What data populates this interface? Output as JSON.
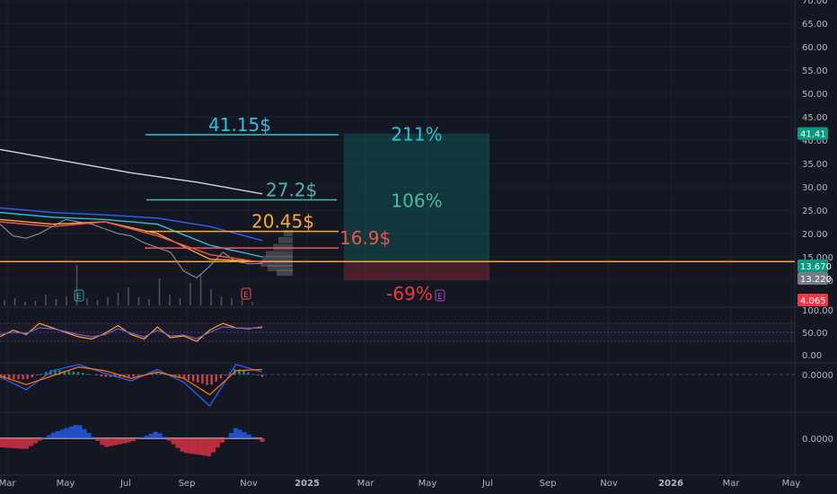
{
  "chart_data": {
    "type": "line",
    "symbol_context": "stock price chart with indicators",
    "price_axis": {
      "ticks": [
        "70.00",
        "65.00",
        "60.00",
        "55.00",
        "50.00",
        "45.00",
        "40.00",
        "35.00",
        "30.00",
        "25.00",
        "20.00",
        "15.000",
        "10.000"
      ],
      "tick_values": [
        70,
        65,
        60,
        55,
        50,
        45,
        40,
        35,
        30,
        25,
        20,
        15,
        10
      ],
      "ylim": [
        10,
        70
      ]
    },
    "time_axis": {
      "ticks": [
        "Mar",
        "May",
        "Jul",
        "Sep",
        "Nov",
        "2025",
        "Mar",
        "May",
        "Jul",
        "Sep",
        "Nov",
        "2026",
        "Mar",
        "May"
      ]
    },
    "price_tags": [
      {
        "label": "41.41",
        "value": 41.41,
        "color": "#089981"
      },
      {
        "label": "13.670",
        "value": 13.67,
        "color": "#089981"
      },
      {
        "label": "13.220",
        "value": 13.22,
        "color": "#787b86"
      },
      {
        "label": "4.065",
        "value": 10.0,
        "color": "#f23645"
      }
    ],
    "targets": [
      {
        "label": "41.15$",
        "value": 41.15,
        "color": "#26c6da"
      },
      {
        "label": "27.2$",
        "value": 27.2,
        "color": "#4db6ac"
      },
      {
        "label": "20.45$",
        "value": 20.45,
        "color": "#ffa726"
      },
      {
        "label": "16.9$",
        "value": 16.9,
        "color": "#ef5350"
      }
    ],
    "support_line": {
      "value": 14.0,
      "color": "#ffa726"
    },
    "position": {
      "entry": 13.67,
      "target": 41.41,
      "stop": 10.0,
      "profit_labels": [
        {
          "label": "211%",
          "value": 41.41,
          "color": "#26c6da"
        },
        {
          "label": "106%",
          "value": 27.2,
          "color": "#4db6ac"
        }
      ],
      "loss_label": {
        "label": "-69%",
        "color": "#f23645"
      }
    },
    "series": [
      {
        "kind": "price",
        "color": "#9598a1",
        "x": [
          0,
          0.05,
          0.1,
          0.15,
          0.2,
          0.25,
          0.3,
          0.35,
          0.4,
          0.45,
          0.5,
          0.55,
          0.6,
          0.65,
          0.7,
          0.75,
          0.8,
          0.85,
          0.9,
          0.95,
          1
        ],
        "y": [
          22,
          19.5,
          19,
          20,
          21.5,
          23,
          22.5,
          22,
          21,
          20,
          19.5,
          18,
          17,
          16,
          12,
          10.5,
          13,
          16,
          14,
          13.5,
          13.6
        ]
      },
      {
        "kind": "ma-long",
        "color": "#d1d4dc",
        "x": [
          0,
          0.25,
          0.5,
          0.75,
          1
        ],
        "y": [
          38,
          35.5,
          33,
          31,
          28.5
        ]
      },
      {
        "kind": "ma-blue",
        "color": "#2962ff",
        "x": [
          0,
          0.2,
          0.4,
          0.6,
          0.8,
          1
        ],
        "y": [
          25.5,
          24.5,
          24,
          23.3,
          21.5,
          18.5
        ]
      },
      {
        "kind": "ma-cyan",
        "color": "#26c6da",
        "x": [
          0,
          0.2,
          0.4,
          0.6,
          0.8,
          1
        ],
        "y": [
          24.5,
          23.5,
          23,
          22,
          17.5,
          15
        ]
      },
      {
        "kind": "ma-orange",
        "color": "#ffa726",
        "x": [
          0,
          0.2,
          0.4,
          0.6,
          0.8,
          1
        ],
        "y": [
          23,
          22,
          22.5,
          20,
          14.5,
          14
        ]
      },
      {
        "kind": "ma-red",
        "color": "#ef5350",
        "x": [
          0,
          0.2,
          0.4,
          0.6,
          0.8,
          1
        ],
        "y": [
          22.5,
          21.5,
          22.5,
          19.5,
          15.5,
          13.8
        ]
      }
    ],
    "earnings_badges": [
      "E",
      "E",
      "E"
    ],
    "rsi": {
      "ticks": [
        "100.00",
        "50.00",
        "0.00"
      ],
      "tick_values": [
        100,
        50,
        0
      ],
      "levels": [
        70,
        50,
        30
      ],
      "x": [
        0,
        0.05,
        0.1,
        0.15,
        0.2,
        0.25,
        0.3,
        0.35,
        0.4,
        0.45,
        0.5,
        0.55,
        0.6,
        0.65,
        0.7,
        0.75,
        0.8,
        0.85,
        0.9,
        0.95,
        1
      ],
      "y": [
        40,
        55,
        45,
        70,
        60,
        50,
        40,
        35,
        48,
        65,
        45,
        35,
        62,
        38,
        42,
        30,
        55,
        70,
        60,
        58,
        62
      ],
      "y2": [
        45,
        50,
        48,
        60,
        58,
        52,
        45,
        40,
        45,
        58,
        48,
        40,
        55,
        42,
        44,
        36,
        50,
        62,
        60,
        59,
        60
      ]
    },
    "macd": {
      "ticks": [
        "0.0000"
      ],
      "x": [
        0,
        0.1,
        0.2,
        0.3,
        0.4,
        0.5,
        0.6,
        0.7,
        0.8,
        0.9,
        1
      ],
      "macd": [
        -0.2,
        -1.2,
        0.3,
        0.8,
        0.1,
        -0.5,
        0.4,
        -0.6,
        -2.5,
        0.8,
        0.2
      ],
      "signal": [
        -0.1,
        -0.8,
        -0.1,
        0.6,
        0.3,
        -0.3,
        0.2,
        -0.3,
        -1.6,
        0.3,
        0.4
      ],
      "hist": [
        -0.3,
        -0.4,
        0.4,
        0.2,
        -0.2,
        -0.2,
        0.2,
        -0.3,
        -0.9,
        0.5,
        -0.2
      ]
    },
    "osc": {
      "ticks": [
        "0.0000"
      ],
      "x": [
        0,
        0.1,
        0.2,
        0.3,
        0.4,
        0.5,
        0.6,
        0.7,
        0.8,
        0.9,
        1
      ],
      "values": [
        -0.5,
        -0.6,
        0.3,
        0.8,
        -0.5,
        -0.2,
        0.4,
        -0.8,
        -1.0,
        0.6,
        -0.2
      ]
    }
  }
}
